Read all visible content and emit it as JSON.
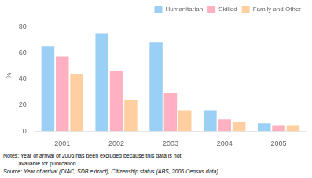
{
  "chart_data": {
    "type": "bar",
    "categories": [
      "2001",
      "2002",
      "2003",
      "2004",
      "2005"
    ],
    "series": [
      {
        "name": "Humanitarian",
        "values": [
          65,
          75,
          68,
          16,
          6
        ]
      },
      {
        "name": "Skilled",
        "values": [
          57,
          46,
          29,
          9,
          4
        ]
      },
      {
        "name": "Family and Other",
        "values": [
          44,
          24,
          16,
          7,
          4
        ]
      }
    ],
    "ylabel": "%",
    "ylim": [
      0,
      85
    ],
    "yticks": [
      0,
      20,
      40,
      60,
      80
    ],
    "grid": false,
    "legend": "upper right",
    "annotations": [
      "Notes: Year of arrival of 2006 has been excluded because this data is not",
      "          available for publication.",
      "Source: Year of arrival (DIAC, SDB extract), Citizenship status (ABS, 2006 Census data)"
    ]
  }
}
